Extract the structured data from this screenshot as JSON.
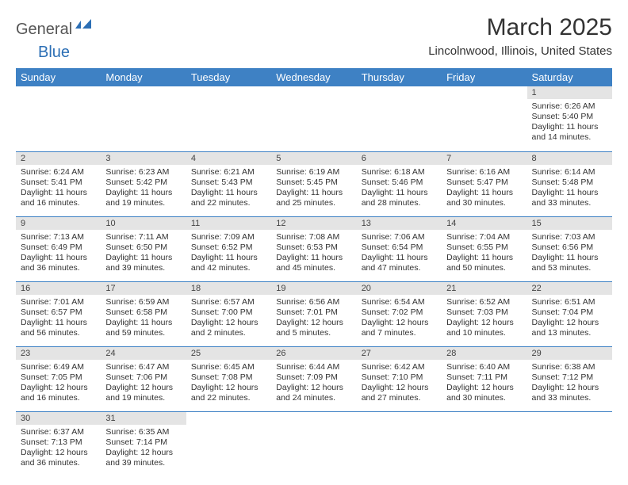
{
  "logo": {
    "part1": "General",
    "part2": "Blue",
    "icon_color": "#2c6fb5"
  },
  "title": "March 2025",
  "location": "Lincolnwood, Illinois, United States",
  "colors": {
    "header_bg": "#3e81c4",
    "header_fg": "#ffffff",
    "daynum_bg": "#e4e4e4",
    "rule": "#3e81c4",
    "text": "#333333"
  },
  "weekdays": [
    "Sunday",
    "Monday",
    "Tuesday",
    "Wednesday",
    "Thursday",
    "Friday",
    "Saturday"
  ],
  "weeks": [
    [
      null,
      null,
      null,
      null,
      null,
      null,
      {
        "n": "1",
        "sr": "6:26 AM",
        "ss": "5:40 PM",
        "dl": "11 hours and 14 minutes."
      }
    ],
    [
      {
        "n": "2",
        "sr": "6:24 AM",
        "ss": "5:41 PM",
        "dl": "11 hours and 16 minutes."
      },
      {
        "n": "3",
        "sr": "6:23 AM",
        "ss": "5:42 PM",
        "dl": "11 hours and 19 minutes."
      },
      {
        "n": "4",
        "sr": "6:21 AM",
        "ss": "5:43 PM",
        "dl": "11 hours and 22 minutes."
      },
      {
        "n": "5",
        "sr": "6:19 AM",
        "ss": "5:45 PM",
        "dl": "11 hours and 25 minutes."
      },
      {
        "n": "6",
        "sr": "6:18 AM",
        "ss": "5:46 PM",
        "dl": "11 hours and 28 minutes."
      },
      {
        "n": "7",
        "sr": "6:16 AM",
        "ss": "5:47 PM",
        "dl": "11 hours and 30 minutes."
      },
      {
        "n": "8",
        "sr": "6:14 AM",
        "ss": "5:48 PM",
        "dl": "11 hours and 33 minutes."
      }
    ],
    [
      {
        "n": "9",
        "sr": "7:13 AM",
        "ss": "6:49 PM",
        "dl": "11 hours and 36 minutes."
      },
      {
        "n": "10",
        "sr": "7:11 AM",
        "ss": "6:50 PM",
        "dl": "11 hours and 39 minutes."
      },
      {
        "n": "11",
        "sr": "7:09 AM",
        "ss": "6:52 PM",
        "dl": "11 hours and 42 minutes."
      },
      {
        "n": "12",
        "sr": "7:08 AM",
        "ss": "6:53 PM",
        "dl": "11 hours and 45 minutes."
      },
      {
        "n": "13",
        "sr": "7:06 AM",
        "ss": "6:54 PM",
        "dl": "11 hours and 47 minutes."
      },
      {
        "n": "14",
        "sr": "7:04 AM",
        "ss": "6:55 PM",
        "dl": "11 hours and 50 minutes."
      },
      {
        "n": "15",
        "sr": "7:03 AM",
        "ss": "6:56 PM",
        "dl": "11 hours and 53 minutes."
      }
    ],
    [
      {
        "n": "16",
        "sr": "7:01 AM",
        "ss": "6:57 PM",
        "dl": "11 hours and 56 minutes."
      },
      {
        "n": "17",
        "sr": "6:59 AM",
        "ss": "6:58 PM",
        "dl": "11 hours and 59 minutes."
      },
      {
        "n": "18",
        "sr": "6:57 AM",
        "ss": "7:00 PM",
        "dl": "12 hours and 2 minutes."
      },
      {
        "n": "19",
        "sr": "6:56 AM",
        "ss": "7:01 PM",
        "dl": "12 hours and 5 minutes."
      },
      {
        "n": "20",
        "sr": "6:54 AM",
        "ss": "7:02 PM",
        "dl": "12 hours and 7 minutes."
      },
      {
        "n": "21",
        "sr": "6:52 AM",
        "ss": "7:03 PM",
        "dl": "12 hours and 10 minutes."
      },
      {
        "n": "22",
        "sr": "6:51 AM",
        "ss": "7:04 PM",
        "dl": "12 hours and 13 minutes."
      }
    ],
    [
      {
        "n": "23",
        "sr": "6:49 AM",
        "ss": "7:05 PM",
        "dl": "12 hours and 16 minutes."
      },
      {
        "n": "24",
        "sr": "6:47 AM",
        "ss": "7:06 PM",
        "dl": "12 hours and 19 minutes."
      },
      {
        "n": "25",
        "sr": "6:45 AM",
        "ss": "7:08 PM",
        "dl": "12 hours and 22 minutes."
      },
      {
        "n": "26",
        "sr": "6:44 AM",
        "ss": "7:09 PM",
        "dl": "12 hours and 24 minutes."
      },
      {
        "n": "27",
        "sr": "6:42 AM",
        "ss": "7:10 PM",
        "dl": "12 hours and 27 minutes."
      },
      {
        "n": "28",
        "sr": "6:40 AM",
        "ss": "7:11 PM",
        "dl": "12 hours and 30 minutes."
      },
      {
        "n": "29",
        "sr": "6:38 AM",
        "ss": "7:12 PM",
        "dl": "12 hours and 33 minutes."
      }
    ],
    [
      {
        "n": "30",
        "sr": "6:37 AM",
        "ss": "7:13 PM",
        "dl": "12 hours and 36 minutes."
      },
      {
        "n": "31",
        "sr": "6:35 AM",
        "ss": "7:14 PM",
        "dl": "12 hours and 39 minutes."
      },
      null,
      null,
      null,
      null,
      null
    ]
  ],
  "labels": {
    "sunrise": "Sunrise:",
    "sunset": "Sunset:",
    "daylight": "Daylight:"
  }
}
